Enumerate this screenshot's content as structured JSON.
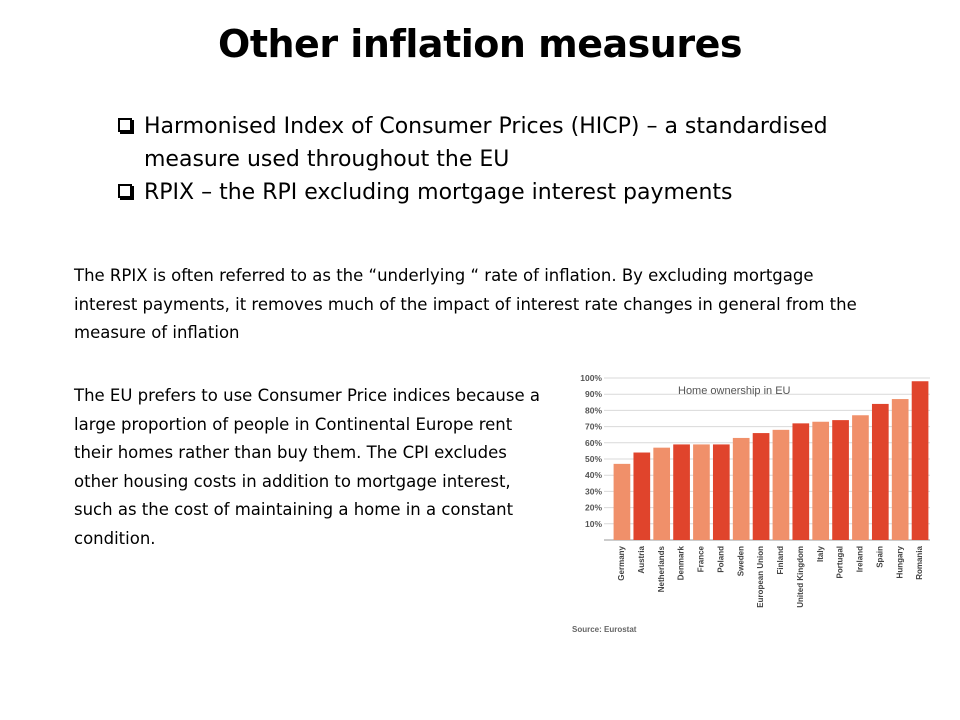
{
  "slide": {
    "title": "Other inflation measures",
    "bullets": [
      "Harmonised Index of Consumer Prices (HICP) – a standardised measure used throughout the EU",
      "RPIX – the RPI excluding mortgage interest payments"
    ],
    "paragraph1": "The RPIX is often referred to as the “underlying “ rate of inflation. By excluding mortgage interest payments,  it removes much of the impact of interest rate changes in general from the measure of inflation",
    "paragraph2": "The EU prefers to use Consumer Price indices because a large proportion of people in Continental Europe rent their homes rather than buy them.  The CPI excludes other housing costs in addition to mortgage interest, such as the cost of maintaining a home in a constant condition."
  },
  "chart_data": {
    "type": "bar",
    "title": "Home ownership in EU",
    "source": "Source: Eurostat",
    "categories": [
      "Germany",
      "Austria",
      "Netherlands",
      "Denmark",
      "France",
      "Poland",
      "Sweden",
      "European Union",
      "Finland",
      "United Kingdom",
      "Italy",
      "Portugal",
      "Ireland",
      "Spain",
      "Hungary",
      "Romania"
    ],
    "values": [
      47,
      54,
      57,
      59,
      59,
      59,
      63,
      66,
      68,
      72,
      73,
      74,
      77,
      84,
      87,
      98
    ],
    "ylim": [
      0,
      100
    ],
    "yticks": [
      "10%",
      "20%",
      "30%",
      "40%",
      "50%",
      "60%",
      "70%",
      "80%",
      "90%",
      "100%"
    ],
    "colors": {
      "light": "#f0906a",
      "dark": "#e0442c"
    },
    "grid": true
  }
}
